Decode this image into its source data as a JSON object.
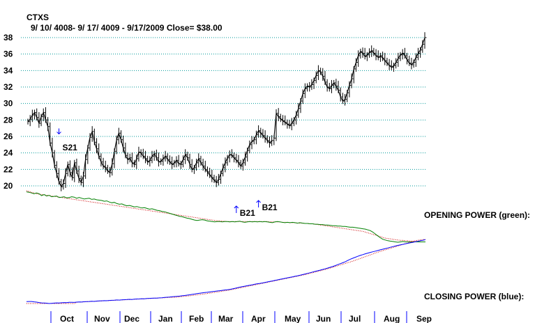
{
  "chart_data": {
    "type": "line",
    "ticker": "CTXS",
    "subtitle": "9/ 10/ 4008- 9/ 17/ 4009 - 9/17/2009    Close= $38.00",
    "ylim": [
      20,
      38
    ],
    "yticks": [
      20,
      22,
      24,
      26,
      28,
      30,
      32,
      34,
      36,
      38
    ],
    "months": [
      "Oct",
      "Nov",
      "Dec",
      "Jan",
      "Feb",
      "Mar",
      "Apr",
      "May",
      "Jun",
      "Jul",
      "Aug",
      "Sep"
    ],
    "price_close": [
      27.8,
      28.1,
      28.6,
      28.9,
      28.3,
      27.6,
      28.4,
      28.9,
      28.0,
      27.2,
      25.2,
      24.0,
      22.5,
      21.5,
      20.5,
      19.9,
      20.3,
      21.5,
      22.6,
      21.6,
      21.0,
      22.8,
      21.8,
      20.9,
      20.4,
      21.2,
      23.2,
      24.6,
      25.9,
      26.6,
      25.3,
      24.5,
      23.6,
      22.9,
      22.4,
      22.2,
      21.8,
      21.6,
      22.7,
      24.2,
      25.6,
      26.4,
      25.6,
      24.6,
      23.7,
      23.2,
      23.4,
      22.8,
      22.6,
      23.3,
      24.1,
      24.0,
      23.6,
      23.3,
      22.9,
      23.1,
      23.6,
      23.9,
      23.4,
      22.9,
      23.0,
      23.3,
      23.6,
      23.2,
      22.9,
      22.6,
      22.8,
      23.1,
      22.7,
      22.6,
      23.2,
      23.8,
      23.4,
      22.6,
      22.0,
      22.2,
      22.8,
      23.3,
      22.8,
      22.4,
      22.0,
      21.7,
      21.3,
      21.0,
      20.7,
      20.4,
      20.8,
      21.5,
      22.2,
      22.8,
      23.4,
      23.8,
      23.7,
      23.4,
      23.1,
      22.8,
      22.4,
      22.8,
      23.5,
      24.3,
      25.0,
      25.4,
      25.6,
      26.2,
      26.7,
      26.4,
      26.1,
      25.8,
      25.5,
      25.2,
      25.5,
      25.8,
      28.8,
      28.4,
      28.1,
      27.9,
      27.7,
      27.5,
      27.3,
      27.6,
      28.0,
      28.6,
      29.4,
      30.3,
      31.2,
      31.8,
      32.1,
      32.0,
      32.3,
      32.8,
      33.4,
      34.0,
      33.8,
      33.3,
      32.6,
      32.0,
      31.8,
      32.2,
      32.5,
      32.1,
      31.6,
      30.8,
      30.3,
      30.5,
      31.3,
      32.2,
      33.0,
      34.2,
      35.0,
      35.8,
      36.3,
      36.1,
      35.7,
      35.9,
      36.2,
      36.4,
      36.1,
      35.8,
      35.6,
      35.8,
      35.5,
      35.2,
      34.9,
      34.6,
      34.4,
      34.6,
      35.0,
      35.5,
      35.9,
      36.1,
      35.8,
      35.3,
      34.9,
      34.7,
      35.0,
      35.6,
      36.1,
      36.5,
      37.2,
      38.0
    ],
    "gaps_after_index": [
      110
    ],
    "signals": [
      {
        "label": "S21",
        "direction": "down",
        "index": 14
      },
      {
        "label": "B21",
        "direction": "up",
        "index": 94
      },
      {
        "label": "B21",
        "direction": "up",
        "index": 104
      }
    ],
    "opening_power": {
      "label": "OPENING POWER (green):",
      "color": "#008000",
      "ma_color": "#cc0000",
      "values": [
        0.05,
        0.06,
        0.08,
        0.1,
        0.08,
        0.1,
        0.15,
        0.12,
        0.16,
        0.14,
        0.18,
        0.17,
        0.16,
        0.2,
        0.19,
        0.18,
        0.21,
        0.2,
        0.18,
        0.19,
        0.22,
        0.2,
        0.22,
        0.24,
        0.23,
        0.22,
        0.25,
        0.24,
        0.26,
        0.27,
        0.28,
        0.3,
        0.29,
        0.32,
        0.34,
        0.33,
        0.36,
        0.38,
        0.37,
        0.4,
        0.42,
        0.41,
        0.43,
        0.45,
        0.44,
        0.46,
        0.48,
        0.47,
        0.49,
        0.51,
        0.5,
        0.52,
        0.54,
        0.55,
        0.57,
        0.58,
        0.6,
        0.62,
        0.64,
        0.66,
        0.68,
        0.7,
        0.71,
        0.73,
        0.75,
        0.76,
        0.78,
        0.8,
        0.81,
        0.8,
        0.79,
        0.8,
        0.82,
        0.83,
        0.84,
        0.85,
        0.84,
        0.84,
        0.85,
        0.84,
        0.84,
        0.85,
        0.84,
        0.85,
        0.84,
        0.83,
        0.85,
        0.86,
        0.85,
        0.84,
        0.85,
        0.84,
        0.85,
        0.84,
        0.85,
        0.84,
        0.85,
        0.86,
        0.87,
        0.85,
        0.84,
        0.85,
        0.86,
        0.87,
        0.86,
        0.87,
        0.86,
        0.87,
        0.88,
        0.87,
        0.88,
        0.89,
        0.89,
        0.9,
        0.9,
        0.91,
        0.91,
        0.92,
        0.92,
        0.93,
        0.93,
        0.94,
        0.95,
        0.95,
        0.96,
        0.96,
        0.97,
        0.97,
        0.98,
        0.99,
        0.99,
        1.0,
        1.01,
        1.02,
        1.03,
        1.04,
        1.06,
        1.08,
        1.12,
        1.17,
        1.22,
        1.27,
        1.31,
        1.33,
        1.35,
        1.36,
        1.37,
        1.38,
        1.39,
        1.38,
        1.37,
        1.38,
        1.38,
        1.38,
        1.38,
        1.38,
        1.38,
        1.38,
        1.38,
        1.38
      ],
      "ma": [
        0.02,
        0.04,
        0.06,
        0.08,
        0.1,
        0.11,
        0.12,
        0.13,
        0.14,
        0.15,
        0.16,
        0.17,
        0.18,
        0.19,
        0.2,
        0.21,
        0.22,
        0.23,
        0.24,
        0.25,
        0.26,
        0.27,
        0.28,
        0.29,
        0.3,
        0.31,
        0.32,
        0.33,
        0.34,
        0.35,
        0.36,
        0.37,
        0.38,
        0.39,
        0.4,
        0.41,
        0.42,
        0.43,
        0.44,
        0.45,
        0.46,
        0.47,
        0.48,
        0.49,
        0.5,
        0.51,
        0.52,
        0.53,
        0.54,
        0.55,
        0.56,
        0.57,
        0.58,
        0.59,
        0.6,
        0.61,
        0.62,
        0.63,
        0.64,
        0.65,
        0.66,
        0.67,
        0.68,
        0.69,
        0.7,
        0.71,
        0.72,
        0.73,
        0.74,
        0.75,
        0.76,
        0.77,
        0.78,
        0.79,
        0.8,
        0.81,
        0.82,
        0.82,
        0.83,
        0.83,
        0.84,
        0.84,
        0.84,
        0.84,
        0.84,
        0.84,
        0.84,
        0.84,
        0.84,
        0.84,
        0.84,
        0.84,
        0.84,
        0.84,
        0.84,
        0.84,
        0.84,
        0.85,
        0.85,
        0.85,
        0.85,
        0.85,
        0.86,
        0.86,
        0.86,
        0.87,
        0.87,
        0.87,
        0.88,
        0.88,
        0.88,
        0.89,
        0.89,
        0.9,
        0.9,
        0.91,
        0.92,
        0.93,
        0.94,
        0.95,
        0.96,
        0.97,
        0.98,
        0.99,
        1.0,
        1.01,
        1.02,
        1.03,
        1.04,
        1.05,
        1.06,
        1.07,
        1.08,
        1.09,
        1.1,
        1.12,
        1.14,
        1.16,
        1.18,
        1.2,
        1.22,
        1.24,
        1.26,
        1.28,
        1.29,
        1.3,
        1.31,
        1.32,
        1.33,
        1.34,
        1.34,
        1.35,
        1.35,
        1.36,
        1.36,
        1.37,
        1.37,
        1.38,
        1.38,
        1.38
      ]
    },
    "closing_power": {
      "label": "CLOSING POWER (blue):",
      "color": "#0000ff",
      "ma_color": "#cc0000",
      "values": [
        0.3,
        0.32,
        0.31,
        0.26,
        0.22,
        0.15,
        0.1,
        0.08,
        0.05,
        0.0,
        0.03,
        0.07,
        0.1,
        0.08,
        0.12,
        0.15,
        0.13,
        0.18,
        0.2,
        0.17,
        0.22,
        0.25,
        0.23,
        0.28,
        0.3,
        0.32,
        0.35,
        0.33,
        0.38,
        0.4,
        0.42,
        0.45,
        0.43,
        0.48,
        0.5,
        0.52,
        0.55,
        0.53,
        0.58,
        0.6,
        0.62,
        0.65,
        0.63,
        0.68,
        0.7,
        0.72,
        0.75,
        0.73,
        0.78,
        0.8,
        0.82,
        0.85,
        0.83,
        0.88,
        0.9,
        0.95,
        0.98,
        1.0,
        1.05,
        1.08,
        1.12,
        1.15,
        1.2,
        1.25,
        1.3,
        1.36,
        1.42,
        1.48,
        1.54,
        1.6,
        1.65,
        1.7,
        1.75,
        1.8,
        1.85,
        1.9,
        1.95,
        2.0,
        2.05,
        2.1,
        2.15,
        2.2,
        2.28,
        2.36,
        2.45,
        2.55,
        2.63,
        2.7,
        2.78,
        2.85,
        2.92,
        3.0,
        3.08,
        3.14,
        3.2,
        3.28,
        3.36,
        3.44,
        3.52,
        3.6,
        3.68,
        3.76,
        3.84,
        3.92,
        4.0,
        4.08,
        4.16,
        4.24,
        4.32,
        4.4,
        4.5,
        4.6,
        4.7,
        4.8,
        4.9,
        5.0,
        5.1,
        5.2,
        5.3,
        5.4,
        5.52,
        5.64,
        5.76,
        5.9,
        6.05,
        6.2,
        6.35,
        6.5,
        6.7,
        6.9,
        7.05,
        7.2,
        7.35,
        7.5,
        7.62,
        7.74,
        7.85,
        7.96,
        8.06,
        8.16,
        8.26,
        8.36,
        8.46,
        8.56,
        8.66,
        8.76,
        8.86,
        8.96,
        9.06,
        9.14,
        9.22,
        9.3,
        9.38,
        9.46,
        9.54,
        9.62,
        9.7,
        9.78,
        9.86,
        9.95
      ],
      "ma": [
        0.0,
        0.0,
        0.0,
        0.0,
        0.0,
        0.0,
        0.0,
        0.0,
        0.0,
        0.0,
        0.0,
        0.0,
        0.0,
        0.0,
        0.0,
        0.0,
        0.0,
        0.0,
        0.0,
        0.0,
        0.2,
        0.22,
        0.24,
        0.26,
        0.28,
        0.3,
        0.32,
        0.34,
        0.36,
        0.38,
        0.4,
        0.42,
        0.44,
        0.46,
        0.48,
        0.5,
        0.52,
        0.54,
        0.56,
        0.58,
        0.6,
        0.62,
        0.64,
        0.66,
        0.68,
        0.7,
        0.72,
        0.74,
        0.76,
        0.78,
        0.8,
        0.82,
        0.84,
        0.86,
        0.88,
        0.9,
        0.92,
        0.94,
        0.96,
        0.98,
        1.0,
        1.04,
        1.08,
        1.12,
        1.16,
        1.2,
        1.25,
        1.3,
        1.35,
        1.4,
        1.45,
        1.5,
        1.56,
        1.62,
        1.68,
        1.74,
        1.8,
        1.86,
        1.92,
        1.98,
        2.04,
        2.1,
        2.18,
        2.26,
        2.34,
        2.42,
        2.5,
        2.58,
        2.66,
        2.74,
        2.82,
        2.9,
        2.98,
        3.06,
        3.14,
        3.22,
        3.3,
        3.38,
        3.46,
        3.54,
        3.62,
        3.7,
        3.78,
        3.86,
        3.94,
        4.02,
        4.1,
        4.18,
        4.26,
        4.34,
        4.42,
        4.5,
        4.6,
        4.7,
        4.8,
        4.9,
        5.0,
        5.1,
        5.2,
        5.3,
        5.4,
        5.52,
        5.64,
        5.76,
        5.88,
        6.0,
        6.12,
        6.24,
        6.36,
        6.48,
        6.6,
        6.74,
        6.88,
        7.02,
        7.16,
        7.3,
        7.44,
        7.58,
        7.72,
        7.86,
        8.0,
        8.12,
        8.24,
        8.36,
        8.48,
        8.6,
        8.72,
        8.84,
        8.96,
        9.08,
        9.2,
        9.32,
        9.44,
        9.56,
        9.68,
        9.78,
        9.86,
        9.92,
        9.96,
        9.98
      ]
    },
    "colors": {
      "price": "#000000",
      "grid": "#009999",
      "signal": "#0000ff",
      "axis_tick": "#0000ff"
    }
  }
}
